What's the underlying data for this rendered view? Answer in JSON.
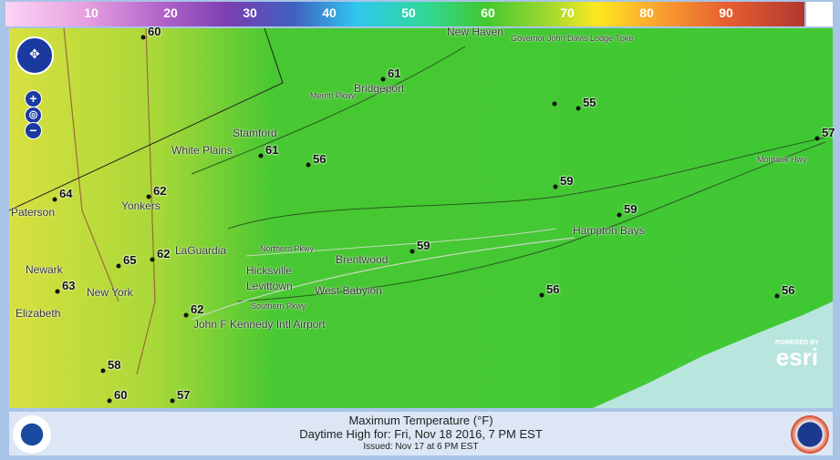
{
  "legend": {
    "ticks": [
      "10",
      "20",
      "30",
      "40",
      "50",
      "60",
      "70",
      "80",
      "90"
    ]
  },
  "map": {
    "points": [
      {
        "value": "60"
      },
      {
        "value": "61"
      },
      {
        "value": "55"
      },
      {
        "value": "61"
      },
      {
        "value": "56"
      },
      {
        "value": "59"
      },
      {
        "value": "64"
      },
      {
        "value": "62"
      },
      {
        "value": "59"
      },
      {
        "value": "59"
      },
      {
        "value": "65"
      },
      {
        "value": "62"
      },
      {
        "value": "63"
      },
      {
        "value": "62"
      },
      {
        "value": "56"
      },
      {
        "value": "56"
      },
      {
        "value": "58"
      },
      {
        "value": "60"
      },
      {
        "value": "57"
      },
      {
        "value": "57"
      },
      {
        "value": ""
      }
    ],
    "places": [
      "New Haven",
      "Bridgeport",
      "Stamford",
      "White Plains",
      "Yonkers",
      "Paterson",
      "Newark",
      "Elizabeth",
      "New York",
      "LaGuardia",
      "John F Kennedy Intl Airport",
      "Hicksville",
      "Levittown",
      "West Babylon",
      "Brentwood",
      "Hampton Bays",
      "Merritt Pkwy",
      "Montauk Hwy",
      "Governor John Davis Lodge Tpke",
      "Southern Pkwy",
      "Northern Pkwy"
    ],
    "attribution": {
      "line1": "POWERED BY",
      "line2": "esri"
    },
    "controls": {
      "zoom_in": "+",
      "zoom_out": "−"
    }
  },
  "footer": {
    "title": "Maximum Temperature (°F)",
    "subtitle": "Daytime High for: Fri, Nov 18 2016,   7 PM EST",
    "issued": "Issued: Nov 17 at 6 PM EST",
    "logo_left": "NOAA",
    "logo_right": "National Weather Service"
  },
  "colors": {
    "land": "#3fc834",
    "warm": "#c8e040",
    "water": "#b8e6de"
  }
}
